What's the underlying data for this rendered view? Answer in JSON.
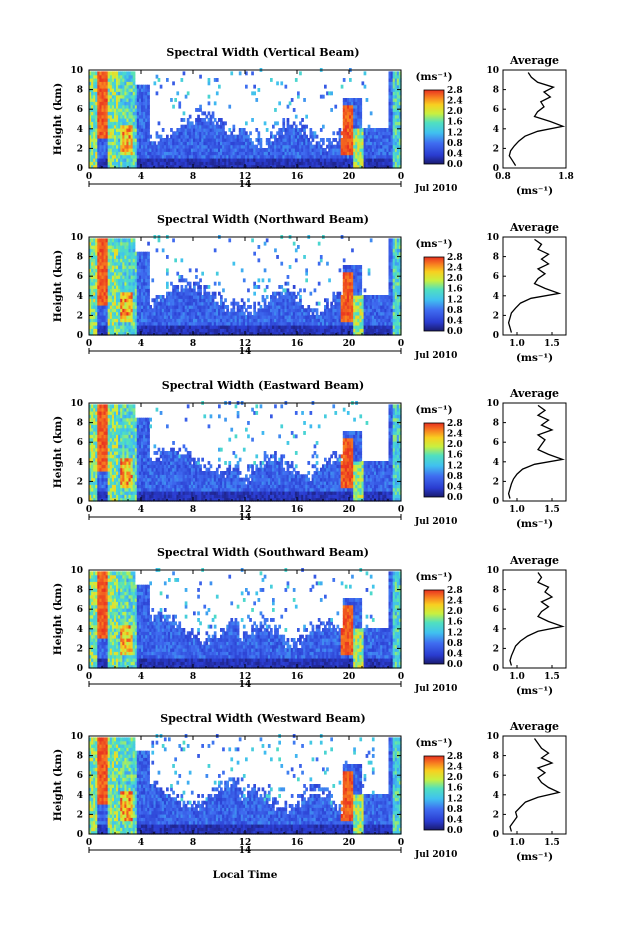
{
  "figure": {
    "date_label": "Jul 2010",
    "day_label": "14",
    "x_axis_label": "Local Time",
    "x_ticks": [
      "0",
      "4",
      "8",
      "12",
      "16",
      "20",
      "0"
    ],
    "y_label": "Height (km)",
    "y_ticks": [
      "0",
      "2",
      "4",
      "6",
      "8",
      "10"
    ],
    "cbar_unit": "(ms⁻¹)",
    "cbar_ticks": [
      "0.0",
      "0.4",
      "0.8",
      "1.2",
      "1.6",
      "2.0",
      "2.4",
      "2.8"
    ],
    "avg_title": "Average",
    "avg_unit": "(ms⁻¹)"
  },
  "chart_data": [
    {
      "type": "heatmap",
      "title": "Spectral Width (Vertical Beam)",
      "xlabel": "Local Time",
      "ylabel": "Height (km)",
      "xlim": [
        0,
        24
      ],
      "ylim": [
        0,
        10
      ],
      "color_range": [
        0.0,
        2.8
      ],
      "average_profile": {
        "title": "Average",
        "xticks": [
          "0.8",
          "1.8"
        ],
        "xlim": [
          0.8,
          1.8
        ],
        "heights": [
          0,
          0.5,
          1,
          1.5,
          2,
          2.5,
          3,
          3.5,
          4,
          4.5,
          5,
          5.5,
          6,
          6.5,
          7,
          7.5,
          8,
          8.5,
          9,
          9.5
        ],
        "values": [
          1.0,
          0.95,
          0.9,
          0.92,
          0.98,
          1.05,
          1.15,
          1.35,
          1.75,
          1.55,
          1.3,
          1.35,
          1.45,
          1.4,
          1.55,
          1.45,
          1.6,
          1.35,
          1.25,
          1.2
        ]
      }
    },
    {
      "type": "heatmap",
      "title": "Spectral Width (Northward Beam)",
      "xlabel": "Local Time",
      "ylabel": "Height (km)",
      "xlim": [
        0,
        24
      ],
      "ylim": [
        0,
        10
      ],
      "color_range": [
        0.0,
        2.8
      ],
      "average_profile": {
        "title": "Average",
        "xticks": [
          "1.0",
          "1.5"
        ],
        "xlim": [
          0.8,
          1.7
        ],
        "heights": [
          0,
          0.5,
          1,
          1.5,
          2,
          2.5,
          3,
          3.5,
          4,
          4.5,
          5,
          5.5,
          6,
          6.5,
          7,
          7.5,
          8,
          8.5,
          9,
          9.5
        ],
        "values": [
          0.92,
          0.9,
          0.88,
          0.9,
          0.92,
          0.98,
          1.05,
          1.2,
          1.6,
          1.4,
          1.25,
          1.3,
          1.4,
          1.3,
          1.45,
          1.35,
          1.45,
          1.3,
          1.35,
          1.25
        ]
      }
    },
    {
      "type": "heatmap",
      "title": "Spectral Width (Eastward Beam)",
      "xlabel": "Local Time",
      "ylabel": "Height (km)",
      "xlim": [
        0,
        24
      ],
      "ylim": [
        0,
        10
      ],
      "color_range": [
        0.0,
        2.8
      ],
      "average_profile": {
        "title": "Average",
        "xticks": [
          "1.0",
          "1.5"
        ],
        "xlim": [
          0.8,
          1.7
        ],
        "heights": [
          0,
          0.5,
          1,
          1.5,
          2,
          2.5,
          3,
          3.5,
          4,
          4.5,
          5,
          5.5,
          6,
          6.5,
          7,
          7.5,
          8,
          8.5,
          9,
          9.5
        ],
        "values": [
          0.9,
          0.88,
          0.9,
          0.92,
          0.95,
          1.0,
          1.08,
          1.25,
          1.65,
          1.45,
          1.3,
          1.35,
          1.4,
          1.3,
          1.5,
          1.35,
          1.45,
          1.3,
          1.4,
          1.3
        ]
      }
    },
    {
      "type": "heatmap",
      "title": "Spectral Width (Southward Beam)",
      "xlabel": "Local Time",
      "ylabel": "Height (km)",
      "xlim": [
        0,
        24
      ],
      "ylim": [
        0,
        10
      ],
      "color_range": [
        0.0,
        2.8
      ],
      "average_profile": {
        "title": "Average",
        "xticks": [
          "1.0",
          "1.5"
        ],
        "xlim": [
          0.8,
          1.7
        ],
        "heights": [
          0,
          0.5,
          1,
          1.5,
          2,
          2.5,
          3,
          3.5,
          4,
          4.5,
          5,
          5.5,
          6,
          6.5,
          7,
          7.5,
          8,
          8.5,
          9,
          9.5
        ],
        "values": [
          0.92,
          0.9,
          0.92,
          0.95,
          0.98,
          1.05,
          1.15,
          1.3,
          1.65,
          1.45,
          1.3,
          1.35,
          1.45,
          1.35,
          1.5,
          1.4,
          1.45,
          1.3,
          1.35,
          1.3
        ]
      }
    },
    {
      "type": "heatmap",
      "title": "Spectral Width (Westward Beam)",
      "xlabel": "Local Time",
      "ylabel": "Height (km)",
      "xlim": [
        0,
        24
      ],
      "ylim": [
        0,
        10
      ],
      "color_range": [
        0.0,
        2.8
      ],
      "average_profile": {
        "title": "Average",
        "xticks": [
          "1.0",
          "1.5"
        ],
        "xlim": [
          0.8,
          1.7
        ],
        "heights": [
          0,
          0.5,
          1,
          1.5,
          2,
          2.5,
          3,
          3.5,
          4,
          4.5,
          5,
          5.5,
          6,
          6.5,
          7,
          7.5,
          8,
          8.5,
          9,
          9.5
        ],
        "values": [
          0.92,
          0.9,
          0.95,
          1.0,
          0.98,
          1.05,
          1.12,
          1.3,
          1.6,
          1.45,
          1.35,
          1.3,
          1.4,
          1.3,
          1.5,
          1.35,
          1.45,
          1.35,
          1.3,
          1.25
        ]
      }
    }
  ]
}
